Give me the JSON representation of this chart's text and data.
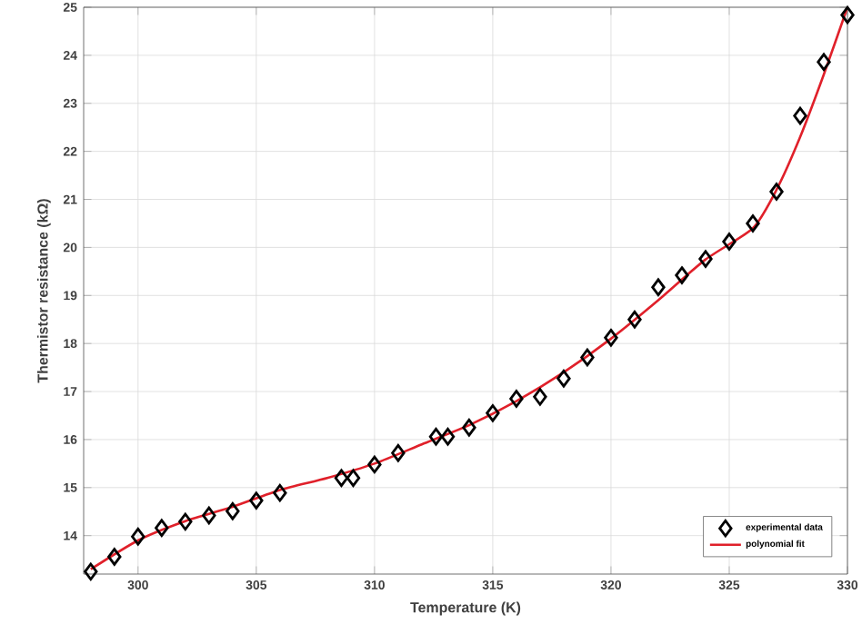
{
  "chart_data": {
    "type": "scatter",
    "xlabel": "Temperature (K)",
    "ylabel": "Thermistor resistance  (kΩ)",
    "xlim": [
      297.7,
      330
    ],
    "ylim": [
      13.2,
      25
    ],
    "xticks": [
      300,
      305,
      310,
      315,
      320,
      325,
      330
    ],
    "yticks": [
      14,
      15,
      16,
      17,
      18,
      19,
      20,
      21,
      22,
      23,
      24,
      25
    ],
    "grid": true,
    "legend": "bottom right",
    "series": [
      {
        "name": "experimental data",
        "marker": "diamond",
        "color": "#000000",
        "x": [
          298,
          299,
          300,
          301,
          302,
          303,
          304,
          305,
          306,
          308.6,
          309.1,
          310,
          311,
          312.6,
          313.1,
          314,
          315,
          316,
          317,
          318,
          319,
          320,
          321,
          322,
          323,
          324,
          325,
          326,
          327,
          328,
          329,
          330
        ],
        "values": [
          13.25,
          13.56,
          13.98,
          14.16,
          14.29,
          14.42,
          14.51,
          14.73,
          14.89,
          15.2,
          15.2,
          15.48,
          15.72,
          16.06,
          16.06,
          16.25,
          16.55,
          16.85,
          16.89,
          17.27,
          17.71,
          18.12,
          18.5,
          19.17,
          19.42,
          19.76,
          20.12,
          20.5,
          21.16,
          22.74,
          23.86,
          24.84
        ]
      },
      {
        "name": "polynomial fit",
        "type": "line",
        "marker": "none",
        "line_style": "solid",
        "color": "#e0202a",
        "x": [
          298,
          300,
          302,
          304,
          306,
          308,
          310,
          312,
          314,
          316,
          318,
          320,
          322,
          324,
          326,
          327,
          328,
          329,
          330
        ],
        "values": [
          13.3,
          13.9,
          14.3,
          14.6,
          14.95,
          15.2,
          15.5,
          15.9,
          16.3,
          16.8,
          17.4,
          18.1,
          18.9,
          19.75,
          20.4,
          21.2,
          22.3,
          23.6,
          25.0
        ]
      }
    ]
  }
}
